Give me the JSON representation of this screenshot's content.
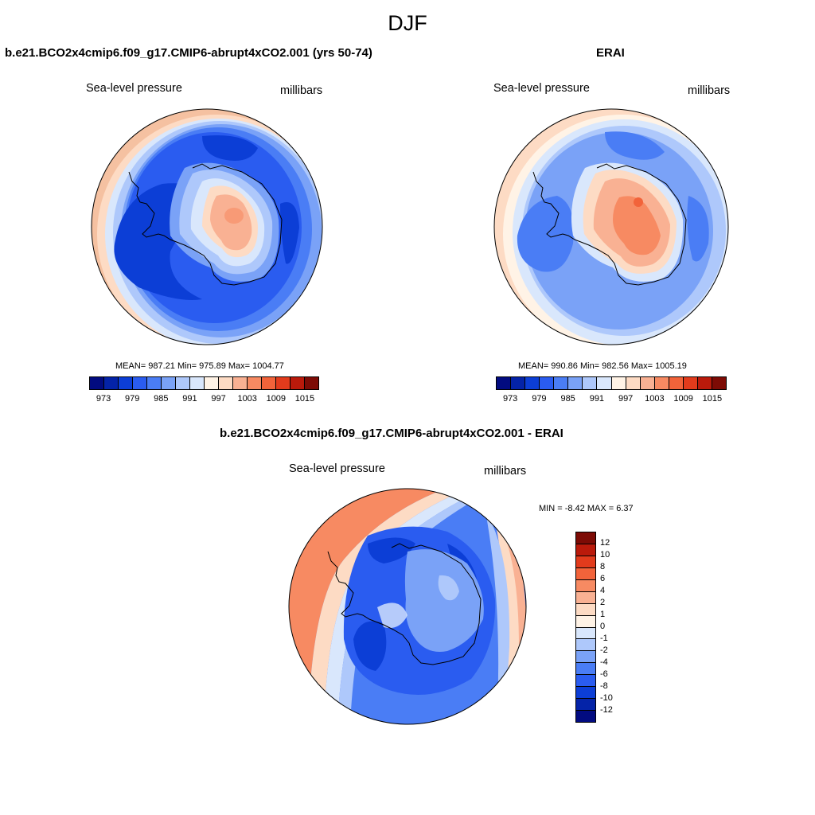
{
  "title": "DJF",
  "panels": {
    "model": {
      "title": "b.e21.BCO2x4cmip6.f09_g17.CMIP6-abrupt4xCO2.001 (yrs 50-74)",
      "variable": "Sea-level pressure",
      "units": "millibars",
      "stats": "MEAN= 987.21  Min= 975.89  Max= 1004.77"
    },
    "obs": {
      "title": "ERAI",
      "variable": "Sea-level pressure",
      "units": "millibars",
      "stats": "MEAN= 990.86  Min= 982.56  Max= 1005.19"
    },
    "diff": {
      "title": "b.e21.BCO2x4cmip6.f09_g17.CMIP6-abrupt4xCO2.001 - ERAI",
      "variable": "Sea-level pressure",
      "units": "millibars",
      "stats": "MIN =  -8.42 MAX =   6.37"
    }
  },
  "colorbar_abs": {
    "labels": [
      "973",
      "979",
      "985",
      "991",
      "997",
      "1003",
      "1009",
      "1015"
    ],
    "colors": [
      "#020b80",
      "#0423a8",
      "#0c3ed6",
      "#2a5cf0",
      "#4a7df5",
      "#7aa2f7",
      "#aec8fb",
      "#d9e7fc",
      "#fff3e6",
      "#fddbc4",
      "#f9b193",
      "#f78a62",
      "#f2633a",
      "#e23b1c",
      "#ba1a0b",
      "#7d0b05"
    ]
  },
  "colorbar_diff": {
    "labels": [
      "12",
      "10",
      "8",
      "6",
      "4",
      "2",
      "1",
      "0",
      "-1",
      "-2",
      "-4",
      "-6",
      "-8",
      "-10",
      "-12"
    ],
    "colors": [
      "#7d0b05",
      "#ba1a0b",
      "#e23b1c",
      "#f2633a",
      "#f78a62",
      "#f9b193",
      "#fddbc4",
      "#fff3e6",
      "#d9e7fc",
      "#aec8fb",
      "#7aa2f7",
      "#4a7df5",
      "#2a5cf0",
      "#0c3ed6",
      "#0423a8",
      "#020b80"
    ]
  }
}
